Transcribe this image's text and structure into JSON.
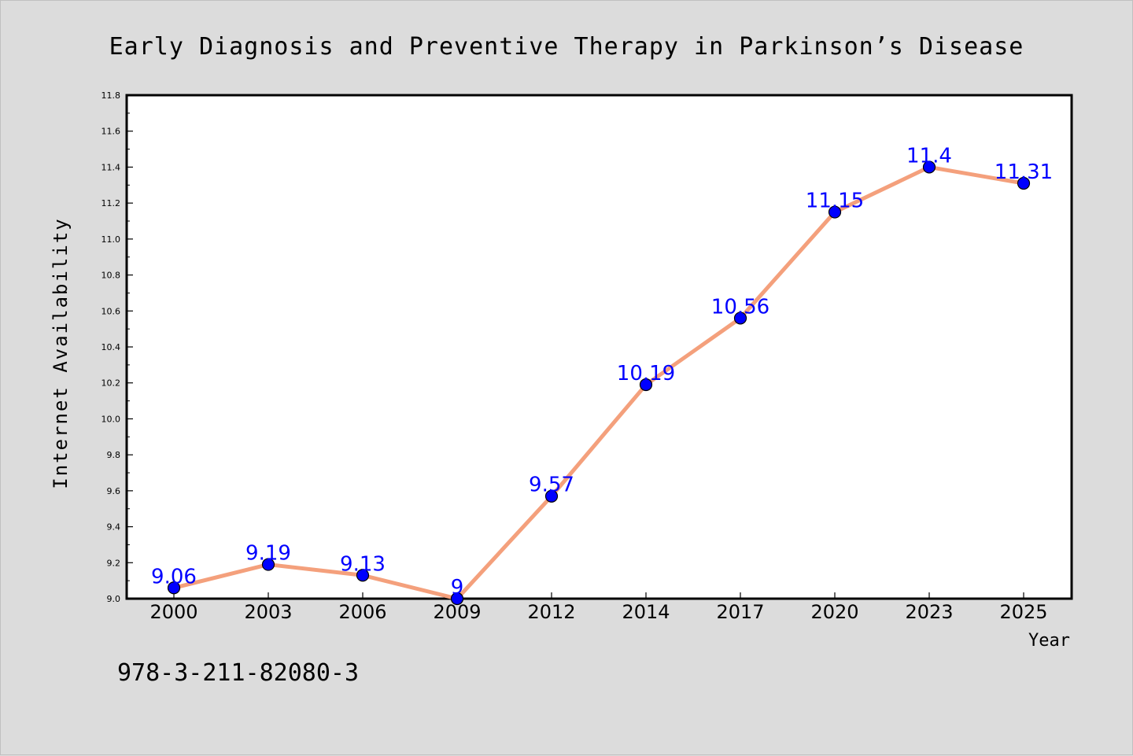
{
  "chart_data": {
    "type": "line",
    "title": "Early Diagnosis and Preventive Therapy in Parkinson’s Disease",
    "xlabel": "Year",
    "ylabel": "Internet Availability",
    "categories": [
      "2000",
      "2003",
      "2006",
      "2009",
      "2012",
      "2014",
      "2017",
      "2020",
      "2023",
      "2025"
    ],
    "series": [
      {
        "values": [
          9.06,
          9.19,
          9.13,
          9.0,
          9.57,
          10.19,
          10.56,
          11.15,
          11.4,
          11.31
        ],
        "labels": [
          "9.06",
          "9.19",
          "9.13",
          "9",
          "9.57",
          "10.19",
          "10.56",
          "11.15",
          "11.4",
          "11.31"
        ],
        "line_color": "#f4a07c",
        "marker_color": "#0000ff"
      }
    ],
    "ylim": [
      9.0,
      11.8
    ],
    "yticks": [
      "9.0",
      "9.2",
      "9.4",
      "9.6",
      "9.8",
      "10.0",
      "10.2",
      "10.4",
      "10.6",
      "10.8",
      "11.0",
      "11.2",
      "11.4",
      "11.6",
      "11.8"
    ],
    "grid": false,
    "legend": "none"
  },
  "footnote": "978-3-211-82080-3",
  "colors": {
    "background": "#dcdcdc",
    "plot_background": "#ffffff",
    "line": "#f4a07c",
    "marker": "#0000ff",
    "data_label": "#0000ff"
  }
}
